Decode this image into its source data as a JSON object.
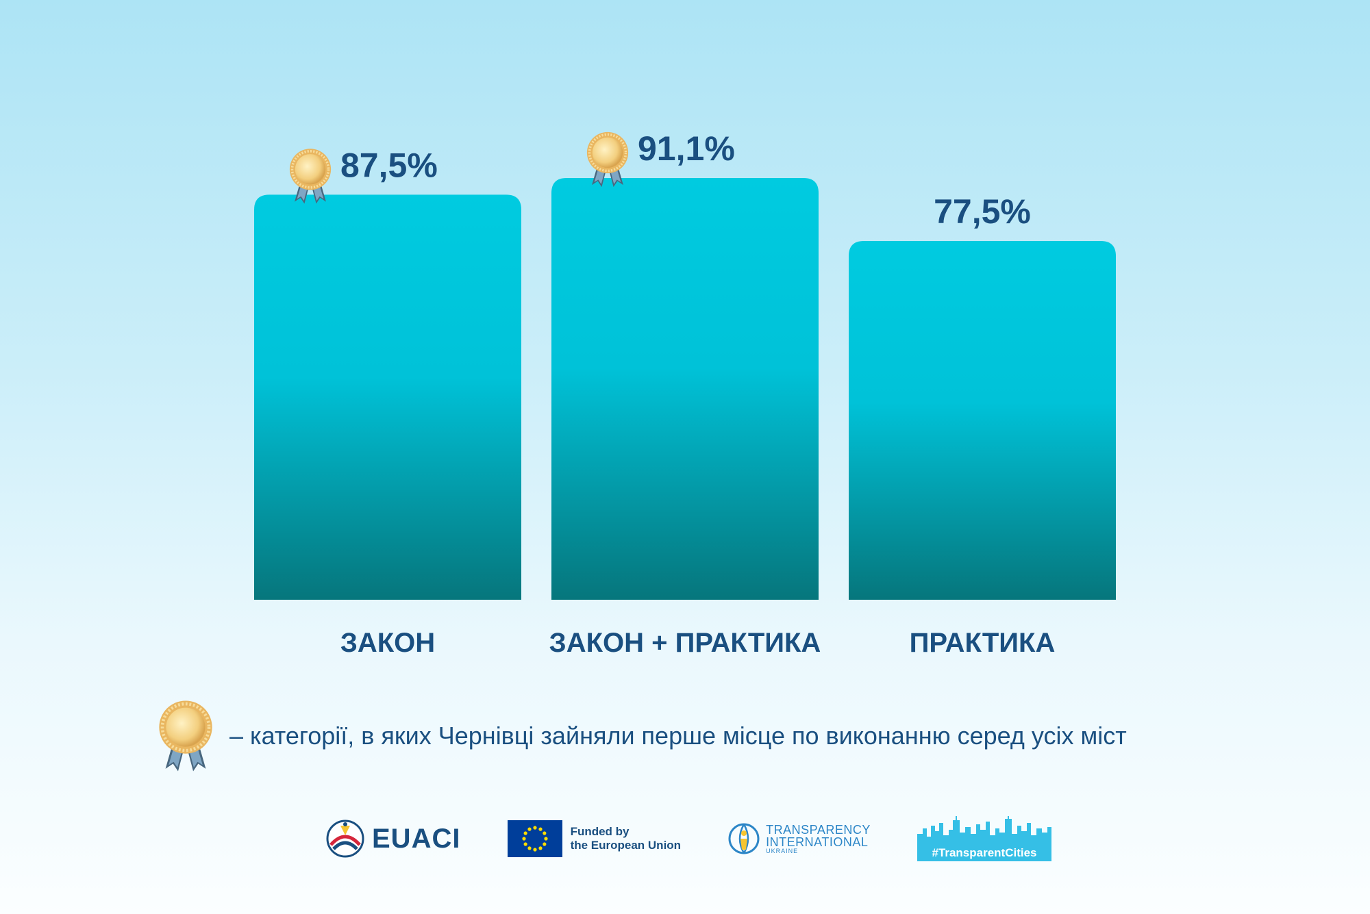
{
  "chart_data": {
    "type": "bar",
    "categories": [
      "ЗАКОН",
      "ЗАКОН + ПРАКТИКА",
      "ПРАКТИКА"
    ],
    "values": [
      87.5,
      91.1,
      77.5
    ],
    "value_labels": [
      "87,5%",
      "91,1%",
      "77,5%"
    ],
    "first_place": [
      true,
      true,
      false
    ],
    "ylim": [
      0,
      100
    ],
    "title": "",
    "xlabel": "",
    "ylabel": "",
    "bar_color_top": "#00cbe0",
    "bar_color_bottom": "#06767c",
    "label_color": "#1a4f80"
  },
  "legend": {
    "text": "– категорії, в яких Чернівці зайняли перше місце по виконанню серед усіх міст",
    "icon": "medal-icon"
  },
  "logos": {
    "euaci": "EUACI",
    "eu_line1": "Funded by",
    "eu_line2": "the European Union",
    "ti_line1": "TRANSPARENCY",
    "ti_line2": "INTERNATIONAL",
    "ti_line3": "UKRAINE",
    "tc": "#TransparentCities"
  }
}
